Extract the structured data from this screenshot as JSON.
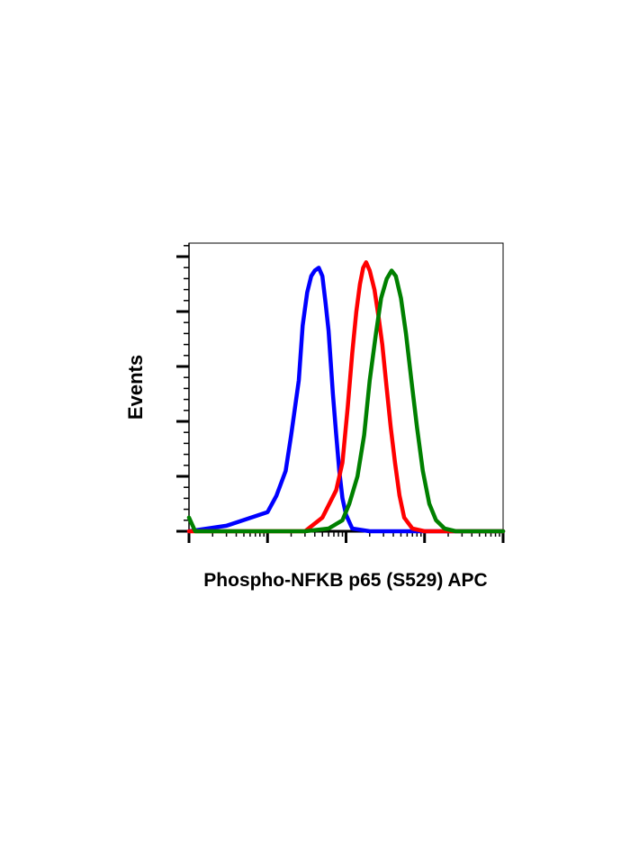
{
  "chart_data": {
    "type": "line",
    "title": "",
    "xlabel": "Phospho-NFKB p65 (S529) APC",
    "ylabel": "Events",
    "x_scale": "log",
    "xlim": [
      1,
      10000
    ],
    "ylim": [
      0,
      1.05
    ],
    "x_decades": [
      1,
      10,
      100,
      1000,
      10000
    ],
    "y_major_ticks": 6,
    "legend": "none",
    "grid": false,
    "series": [
      {
        "color": "#0000ff",
        "points": [
          [
            1.0,
            0.0
          ],
          [
            3.0,
            0.02
          ],
          [
            10.0,
            0.07
          ],
          [
            13.0,
            0.13
          ],
          [
            17.0,
            0.22
          ],
          [
            20.0,
            0.35
          ],
          [
            25.0,
            0.55
          ],
          [
            28.0,
            0.75
          ],
          [
            32.0,
            0.87
          ],
          [
            36.0,
            0.93
          ],
          [
            40.0,
            0.95
          ],
          [
            45.0,
            0.96
          ],
          [
            50.0,
            0.93
          ],
          [
            55.0,
            0.83
          ],
          [
            60.0,
            0.73
          ],
          [
            68.0,
            0.5
          ],
          [
            75.0,
            0.35
          ],
          [
            82.0,
            0.22
          ],
          [
            90.0,
            0.12
          ],
          [
            100.0,
            0.06
          ],
          [
            120.0,
            0.01
          ],
          [
            200.0,
            0.0
          ],
          [
            10000.0,
            0.0
          ]
        ]
      },
      {
        "color": "#ff0000",
        "points": [
          [
            1.0,
            0.0
          ],
          [
            30.0,
            0.0
          ],
          [
            50.0,
            0.05
          ],
          [
            75.0,
            0.15
          ],
          [
            90.0,
            0.25
          ],
          [
            105.0,
            0.45
          ],
          [
            120.0,
            0.65
          ],
          [
            135.0,
            0.8
          ],
          [
            150.0,
            0.9
          ],
          [
            165.0,
            0.96
          ],
          [
            180.0,
            0.98
          ],
          [
            200.0,
            0.95
          ],
          [
            230.0,
            0.88
          ],
          [
            260.0,
            0.78
          ],
          [
            290.0,
            0.68
          ],
          [
            330.0,
            0.52
          ],
          [
            370.0,
            0.38
          ],
          [
            420.0,
            0.25
          ],
          [
            480.0,
            0.13
          ],
          [
            550.0,
            0.05
          ],
          [
            700.0,
            0.01
          ],
          [
            1000.0,
            0.0
          ],
          [
            10000.0,
            0.0
          ]
        ]
      },
      {
        "color": "#008000",
        "points": [
          [
            1.0,
            0.05
          ],
          [
            1.2,
            0.0
          ],
          [
            30.0,
            0.0
          ],
          [
            60.0,
            0.01
          ],
          [
            90.0,
            0.04
          ],
          [
            110.0,
            0.1
          ],
          [
            140.0,
            0.2
          ],
          [
            170.0,
            0.35
          ],
          [
            200.0,
            0.55
          ],
          [
            240.0,
            0.72
          ],
          [
            280.0,
            0.85
          ],
          [
            330.0,
            0.92
          ],
          [
            380.0,
            0.95
          ],
          [
            430.0,
            0.93
          ],
          [
            500.0,
            0.85
          ],
          [
            580.0,
            0.72
          ],
          [
            680.0,
            0.55
          ],
          [
            800.0,
            0.38
          ],
          [
            950.0,
            0.22
          ],
          [
            1150.0,
            0.1
          ],
          [
            1400.0,
            0.04
          ],
          [
            1800.0,
            0.01
          ],
          [
            2500.0,
            0.0
          ],
          [
            10000.0,
            0.0
          ]
        ]
      }
    ]
  }
}
